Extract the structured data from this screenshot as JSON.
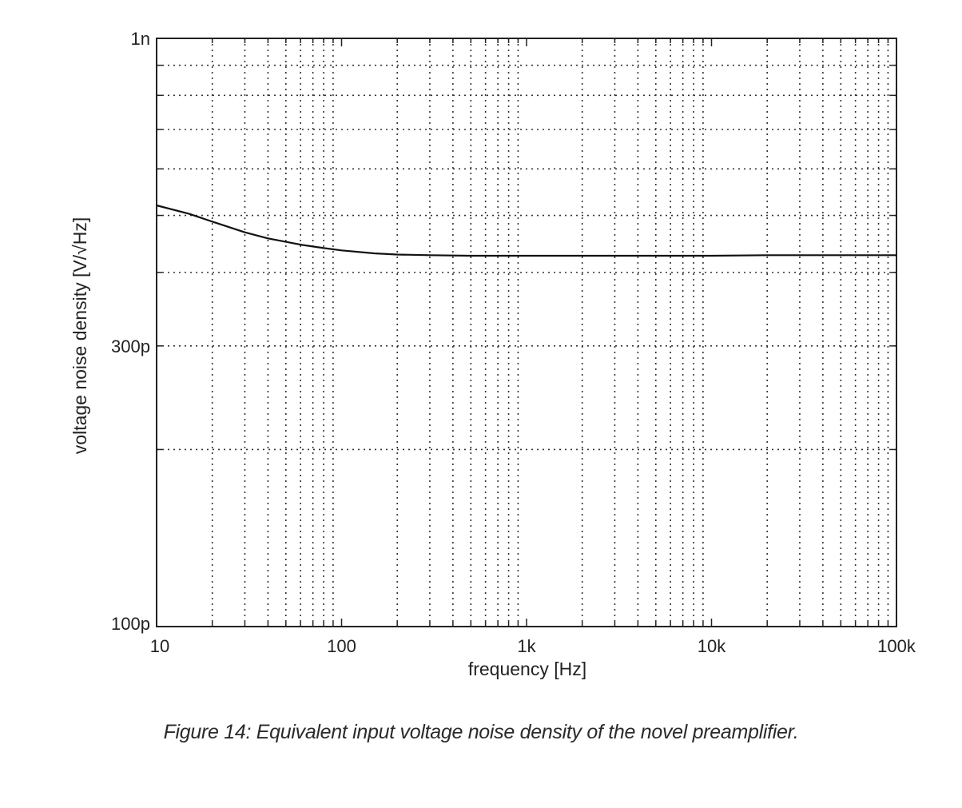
{
  "chart_data": {
    "type": "line",
    "x_scale": "log",
    "y_scale": "log",
    "xlim": [
      10,
      100000
    ],
    "ylim": [
      1e-10,
      1e-09
    ],
    "xlabel": "frequency [Hz]",
    "ylabel": "voltage noise density [V/√Hz]",
    "x_ticks": [
      {
        "value": 10,
        "label": "10"
      },
      {
        "value": 100,
        "label": "100"
      },
      {
        "value": 1000,
        "label": "1k"
      },
      {
        "value": 10000,
        "label": "10k"
      },
      {
        "value": 100000,
        "label": "100k"
      }
    ],
    "y_ticks": [
      {
        "value": 1e-10,
        "label": "100p"
      },
      {
        "value": 3e-10,
        "label": "300p"
      },
      {
        "value": 1e-09,
        "label": "1n"
      }
    ],
    "grid": true,
    "grid_style": "dotted",
    "line_color": "#111111",
    "series": [
      {
        "x": [
          10,
          15,
          20,
          30,
          40,
          60,
          80,
          100,
          150,
          200,
          300,
          500,
          1000,
          2000,
          5000,
          10000,
          20000,
          50000,
          100000
        ],
        "y": [
          5.2e-10,
          5.03e-10,
          4.88e-10,
          4.68e-10,
          4.57e-10,
          4.46e-10,
          4.4e-10,
          4.36e-10,
          4.31e-10,
          4.29e-10,
          4.28e-10,
          4.27e-10,
          4.27e-10,
          4.27e-10,
          4.27e-10,
          4.27e-10,
          4.28e-10,
          4.28e-10,
          4.28e-10
        ]
      }
    ]
  },
  "caption": "Figure 14: Equivalent input voltage noise density of the novel preamplifier."
}
